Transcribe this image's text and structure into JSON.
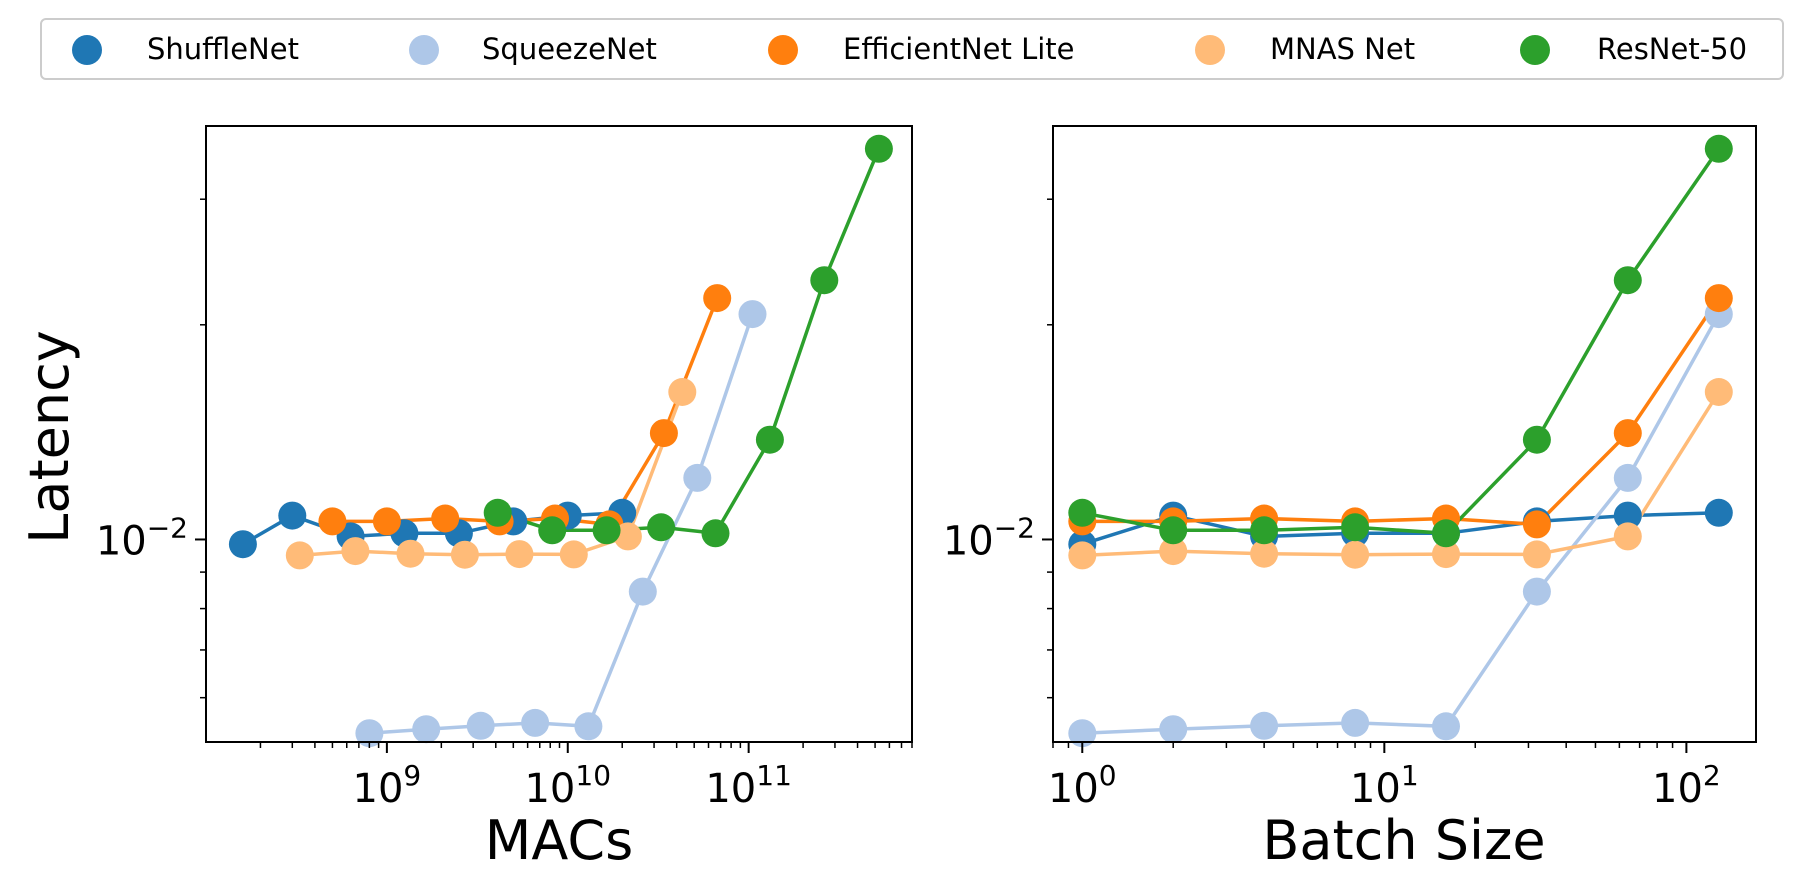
{
  "legend": {
    "items": [
      {
        "label": "ShuffleNet",
        "color": "#1f77b4"
      },
      {
        "label": "SqueezeNet",
        "color": "#aec7e8"
      },
      {
        "label": "EfficientNet Lite",
        "color": "#ff7f0e"
      },
      {
        "label": "MNAS Net",
        "color": "#ffbb78"
      },
      {
        "label": "ResNet-50",
        "color": "#2ca02c"
      }
    ]
  },
  "chart_data": [
    {
      "type": "line",
      "xlabel": "MACs",
      "ylabel": "Latency",
      "xscale": "log",
      "yscale": "log",
      "xlim": [
        100000000.0,
        800000000000.0
      ],
      "ylim": [
        0.0052,
        0.038
      ],
      "xticks": [
        {
          "base": "10",
          "exp": "9",
          "value": 1000000000.0
        },
        {
          "base": "10",
          "exp": "10",
          "value": 10000000000.0
        },
        {
          "base": "10",
          "exp": "11",
          "value": 100000000000.0
        }
      ],
      "yticks": [
        {
          "base": "10",
          "exp": "−2",
          "value": 0.01
        }
      ],
      "grid": false,
      "series": [
        {
          "name": "ShuffleNet",
          "color": "#1f77b4",
          "x": [
            160000000.0,
            300000000.0,
            630000000.0,
            1250000000.0,
            2500000000.0,
            5000000000.0,
            10000000000.0,
            20000000000.0
          ],
          "y": [
            0.00985,
            0.0108,
            0.0101,
            0.0102,
            0.0102,
            0.0106,
            0.0108,
            0.0109
          ]
        },
        {
          "name": "SqueezeNet",
          "color": "#aec7e8",
          "x": [
            800000000.0,
            1650000000.0,
            3300000000.0,
            6600000000.0,
            13000000000.0,
            26000000000.0,
            52000000000.0,
            105000000000.0
          ],
          "y": [
            0.00535,
            0.00542,
            0.00548,
            0.00553,
            0.00547,
            0.00845,
            0.0122,
            0.0207
          ]
        },
        {
          "name": "EfficientNet Lite",
          "color": "#ff7f0e",
          "x": [
            500000000.0,
            1000000000.0,
            2100000000.0,
            4200000000.0,
            8500000000.0,
            17000000000.0,
            34000000000.0,
            67000000000.0
          ],
          "y": [
            0.0106,
            0.0106,
            0.0107,
            0.0106,
            0.0107,
            0.0105,
            0.0141,
            0.0218
          ]
        },
        {
          "name": "MNAS Net",
          "color": "#ffbb78",
          "x": [
            330000000.0,
            670000000.0,
            1350000000.0,
            2700000000.0,
            5400000000.0,
            10800000000.0,
            21500000000.0,
            43000000000.0
          ],
          "y": [
            0.0095,
            0.00963,
            0.00955,
            0.00952,
            0.00954,
            0.00953,
            0.0101,
            0.0161
          ]
        },
        {
          "name": "ResNet-50",
          "color": "#2ca02c",
          "x": [
            4100000000.0,
            8200000000.0,
            16400000000.0,
            32800000000.0,
            65600000000.0,
            131000000000.0,
            262000000000.0,
            525000000000.0
          ],
          "y": [
            0.0109,
            0.0103,
            0.0103,
            0.0104,
            0.0102,
            0.0138,
            0.0231,
            0.0353
          ]
        }
      ]
    },
    {
      "type": "line",
      "xlabel": "Batch Size",
      "ylabel": "",
      "xscale": "log",
      "yscale": "log",
      "xlim": [
        0.8,
        170
      ],
      "ylim": [
        0.0052,
        0.038
      ],
      "xticks": [
        {
          "base": "10",
          "exp": "0",
          "value": 1
        },
        {
          "base": "10",
          "exp": "1",
          "value": 10
        },
        {
          "base": "10",
          "exp": "2",
          "value": 100
        }
      ],
      "yticks": [
        {
          "base": "10",
          "exp": "−2",
          "value": 0.01
        }
      ],
      "grid": false,
      "series": [
        {
          "name": "ShuffleNet",
          "color": "#1f77b4",
          "x": [
            1,
            2,
            4,
            8,
            16,
            32,
            64,
            128
          ],
          "y": [
            0.00985,
            0.0108,
            0.0101,
            0.0102,
            0.0102,
            0.0106,
            0.0108,
            0.0109
          ]
        },
        {
          "name": "SqueezeNet",
          "color": "#aec7e8",
          "x": [
            1,
            2,
            4,
            8,
            16,
            32,
            64,
            128
          ],
          "y": [
            0.00535,
            0.00542,
            0.00548,
            0.00553,
            0.00547,
            0.00845,
            0.0122,
            0.0207
          ]
        },
        {
          "name": "EfficientNet Lite",
          "color": "#ff7f0e",
          "x": [
            1,
            2,
            4,
            8,
            16,
            32,
            64,
            128
          ],
          "y": [
            0.0106,
            0.0106,
            0.0107,
            0.0106,
            0.0107,
            0.0105,
            0.0141,
            0.0218
          ]
        },
        {
          "name": "MNAS Net",
          "color": "#ffbb78",
          "x": [
            1,
            2,
            4,
            8,
            16,
            32,
            64,
            128
          ],
          "y": [
            0.0095,
            0.00963,
            0.00955,
            0.00952,
            0.00954,
            0.00953,
            0.0101,
            0.0161
          ]
        },
        {
          "name": "ResNet-50",
          "color": "#2ca02c",
          "x": [
            1,
            2,
            4,
            8,
            16,
            32,
            64,
            128
          ],
          "y": [
            0.0109,
            0.0103,
            0.0103,
            0.0104,
            0.0102,
            0.0138,
            0.0231,
            0.0353
          ]
        }
      ]
    }
  ]
}
